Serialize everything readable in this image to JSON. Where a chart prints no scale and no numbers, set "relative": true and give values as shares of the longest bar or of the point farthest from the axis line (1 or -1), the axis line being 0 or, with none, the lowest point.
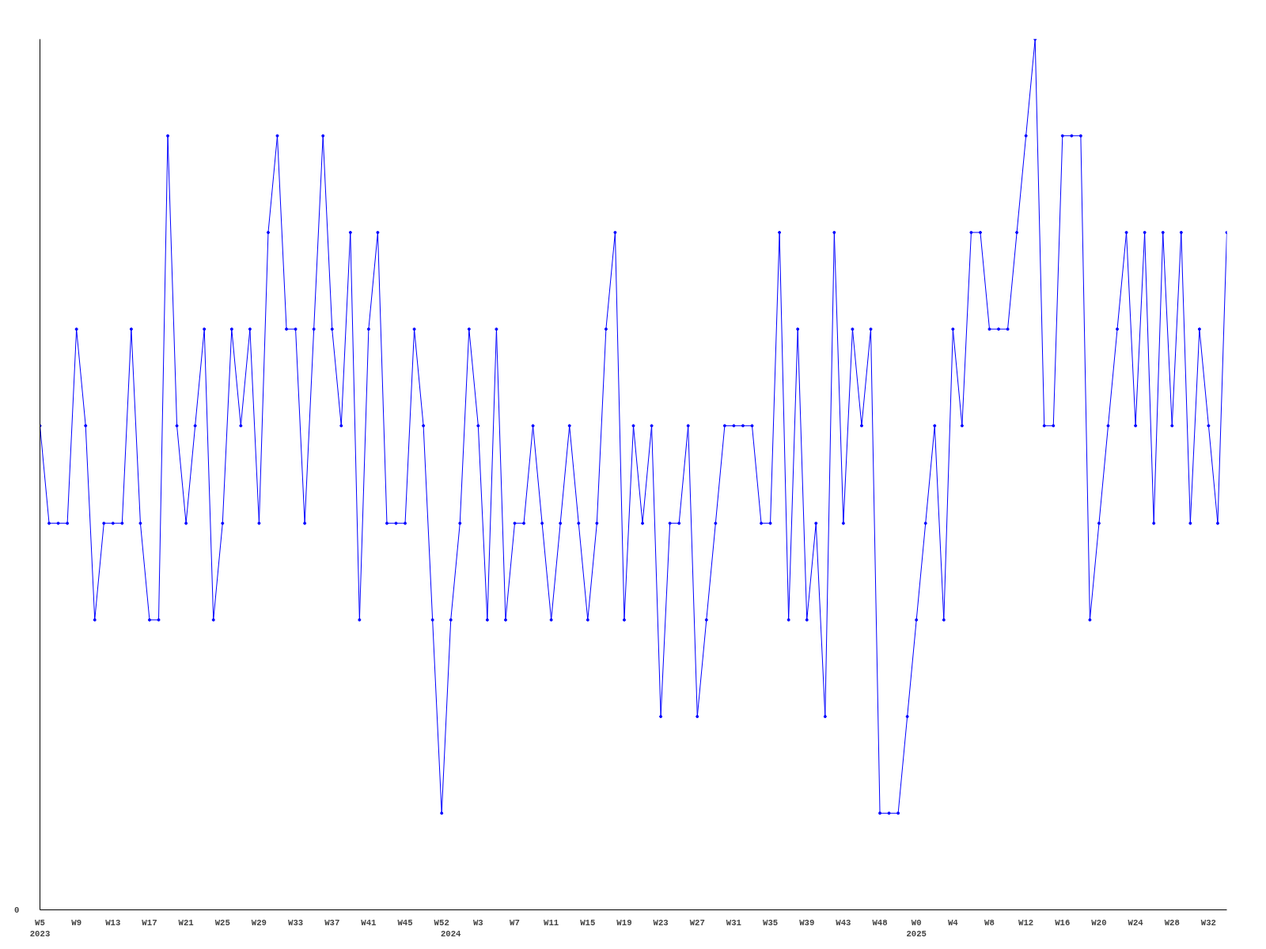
{
  "chart_data": {
    "type": "line",
    "relative": true,
    "color": "#0000ff",
    "marker": "circle",
    "line_style": "solid",
    "grid": false,
    "annotations": [
      "0"
    ],
    "categories": [
      "W5\n2023",
      null,
      null,
      null,
      "W9",
      null,
      null,
      null,
      "W13",
      null,
      null,
      null,
      "W17",
      null,
      null,
      null,
      "W21",
      null,
      null,
      null,
      "W25",
      null,
      null,
      null,
      "W29",
      null,
      null,
      null,
      "W33",
      null,
      null,
      null,
      "W37",
      null,
      null,
      null,
      "W41",
      null,
      null,
      null,
      "W45",
      null,
      null,
      null,
      "W52",
      "\n2024",
      null,
      null,
      "W3",
      null,
      null,
      null,
      "W7",
      null,
      null,
      null,
      "W11",
      null,
      null,
      null,
      "W15",
      null,
      null,
      null,
      "W19",
      null,
      null,
      null,
      "W23",
      null,
      null,
      null,
      "W27",
      null,
      null,
      null,
      "W31",
      null,
      null,
      null,
      "W35",
      null,
      null,
      null,
      "W39",
      null,
      null,
      null,
      "W43",
      null,
      null,
      null,
      "W48",
      null,
      null,
      null,
      "W0\n2025",
      null,
      null,
      null,
      "W4",
      null,
      null,
      null,
      "W8",
      null,
      null,
      null,
      "W12",
      null,
      null,
      null,
      "W16",
      null,
      null,
      null,
      "W20",
      null,
      null,
      null,
      "W24",
      null,
      null,
      null,
      "W28",
      null,
      null,
      null,
      "W32",
      null,
      null
    ],
    "values": [
      0.556,
      0.444,
      0.444,
      0.444,
      0.667,
      0.556,
      0.333,
      0.444,
      0.444,
      0.444,
      0.667,
      0.444,
      0.333,
      0.333,
      0.889,
      0.556,
      0.444,
      0.556,
      0.667,
      0.333,
      0.444,
      0.667,
      0.556,
      0.667,
      0.444,
      0.778,
      0.889,
      0.667,
      0.667,
      0.444,
      0.667,
      0.889,
      0.667,
      0.556,
      0.778,
      0.333,
      0.667,
      0.778,
      0.444,
      0.444,
      0.444,
      0.667,
      0.556,
      0.333,
      0.111,
      0.333,
      0.444,
      0.667,
      0.556,
      0.333,
      0.667,
      0.333,
      0.444,
      0.444,
      0.556,
      0.444,
      0.333,
      0.444,
      0.556,
      0.444,
      0.333,
      0.444,
      0.667,
      0.778,
      0.333,
      0.556,
      0.444,
      0.556,
      0.222,
      0.444,
      0.444,
      0.556,
      0.222,
      0.333,
      0.444,
      0.556,
      0.556,
      0.556,
      0.556,
      0.444,
      0.444,
      0.778,
      0.333,
      0.667,
      0.333,
      0.444,
      0.222,
      0.778,
      0.444,
      0.667,
      0.556,
      0.667,
      0.111,
      0.111,
      0.111,
      0.222,
      0.333,
      0.444,
      0.556,
      0.333,
      0.667,
      0.556,
      0.778,
      0.778,
      0.667,
      0.667,
      0.667,
      0.778,
      0.889,
      1,
      0.556,
      0.556,
      0.889,
      0.889,
      0.889,
      0.333,
      0.444,
      0.556,
      0.667,
      0.778,
      0.556,
      0.778,
      0.444,
      0.778,
      0.556,
      0.778,
      0.444,
      0.667,
      0.556,
      0.444,
      0.778
    ]
  }
}
